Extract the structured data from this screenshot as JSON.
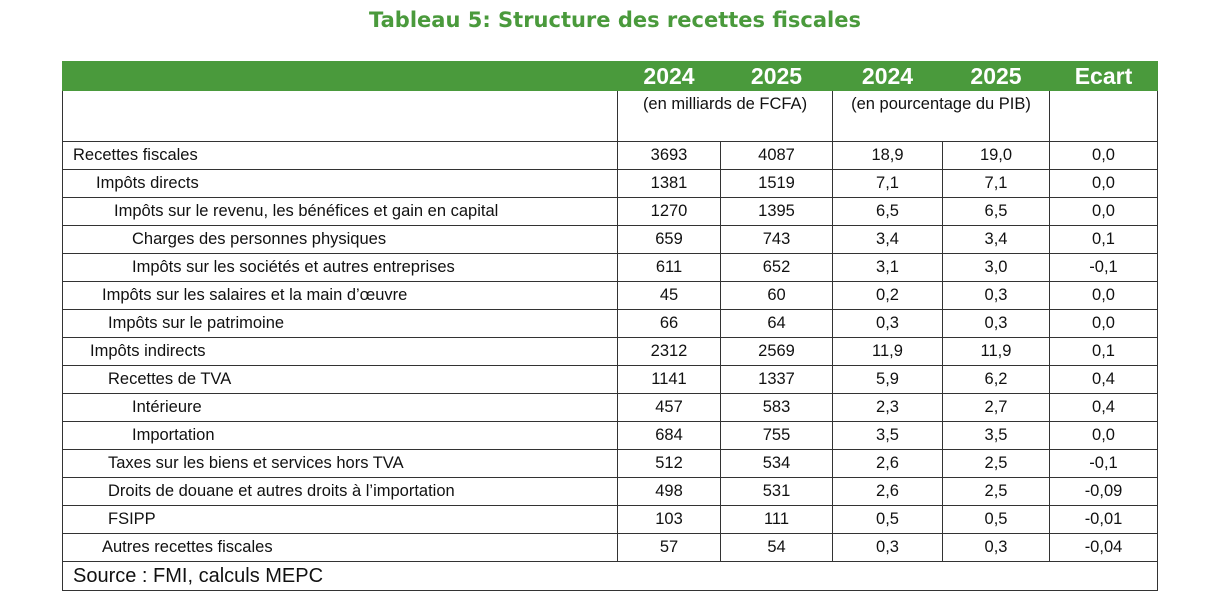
{
  "title": "Tableau 5: Structure des recettes fiscales",
  "table": {
    "header": [
      "2024",
      "2025",
      "2024",
      "2025",
      "Ecart"
    ],
    "units": [
      "(en milliards de FCFA)",
      "(en pourcentage du PIB)"
    ],
    "rows": [
      [
        "Recettes fiscales",
        "3693",
        "4087",
        "18,9",
        "19,0",
        "0,0"
      ],
      [
        "Impôts directs",
        "1381",
        "1519",
        "7,1",
        "7,1",
        "0,0"
      ],
      [
        "Impôts sur le revenu, les bénéfices et gain en capital",
        "1270",
        "1395",
        "6,5",
        "6,5",
        "0,0"
      ],
      [
        "Charges des personnes physiques",
        "659",
        "743",
        "3,4",
        "3,4",
        "0,1"
      ],
      [
        "Impôts sur les sociétés et autres entreprises",
        "611",
        "652",
        "3,1",
        "3,0",
        "-0,1"
      ],
      [
        "Impôts sur les salaires et la main d’œuvre",
        "45",
        "60",
        "0,2",
        "0,3",
        "0,0"
      ],
      [
        "Impôts sur le patrimoine",
        "66",
        "64",
        "0,3",
        "0,3",
        "0,0"
      ],
      [
        "Impôts indirects",
        "2312",
        "2569",
        "11,9",
        "11,9",
        "0,1"
      ],
      [
        "Recettes de TVA",
        "1141",
        "1337",
        "5,9",
        "6,2",
        "0,4"
      ],
      [
        "Intérieure",
        "457",
        "583",
        "2,3",
        "2,7",
        "0,4"
      ],
      [
        "Importation",
        "684",
        "755",
        "3,5",
        "3,5",
        "0,0"
      ],
      [
        "Taxes sur les biens et services hors TVA",
        "512",
        "534",
        "2,6",
        "2,5",
        "-0,1"
      ],
      [
        "Droits de douane et autres droits à l’importation",
        "498",
        "531",
        "2,6",
        "2,5",
        "-0,09"
      ],
      [
        "FSIPP",
        "103",
        "111",
        "0,5",
        "0,5",
        "-0,01"
      ],
      [
        "Autres recettes fiscales",
        "57",
        "54",
        "0,3",
        "0,3",
        "-0,04"
      ]
    ],
    "source": "Source :  FMI, calculs MEPC"
  }
}
